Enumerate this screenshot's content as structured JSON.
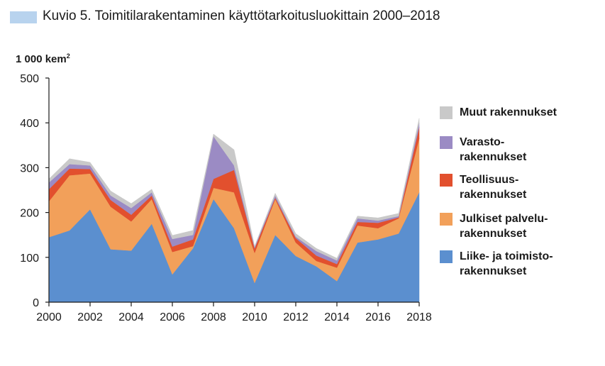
{
  "title": "Kuvio 5. Toimitilarakentaminen käyttötarkoitusluokittain 2000–2018",
  "unit_label": "1 000 kem",
  "unit_sup": "2",
  "colors": {
    "title_swatch": "#b8d3ee",
    "liike": "#5b8fcf",
    "julkiset": "#f2a05a",
    "teollisuus": "#e2502e",
    "varasto": "#9b8bc4",
    "muut": "#c9c9c9"
  },
  "chart_data": {
    "type": "area",
    "stacked": true,
    "x": [
      2000,
      2001,
      2002,
      2003,
      2004,
      2005,
      2006,
      2007,
      2008,
      2009,
      2010,
      2011,
      2012,
      2013,
      2014,
      2015,
      2016,
      2017,
      2018
    ],
    "ylim": [
      0,
      500
    ],
    "yticks": [
      0,
      100,
      200,
      300,
      400,
      500
    ],
    "xticks": [
      2000,
      2002,
      2004,
      2006,
      2008,
      2010,
      2012,
      2014,
      2016,
      2018
    ],
    "grid": false,
    "legend_position": "right",
    "series": [
      {
        "name": "Liike- ja toimistorakennukset",
        "legend_lines": [
          "Liike- ja toimisto-",
          "rakennukset"
        ],
        "color": "#5b8fcf",
        "values": [
          145,
          160,
          207,
          118,
          115,
          175,
          62,
          120,
          230,
          165,
          43,
          150,
          103,
          80,
          47,
          133,
          140,
          153,
          245
        ]
      },
      {
        "name": "Julkiset palvelurakennukset",
        "legend_lines": [
          "Julkiset palvelu-",
          "rakennukset"
        ],
        "color": "#f2a05a",
        "values": [
          80,
          123,
          80,
          95,
          65,
          55,
          50,
          5,
          25,
          80,
          67,
          80,
          30,
          12,
          30,
          38,
          25,
          34,
          120
        ]
      },
      {
        "name": "Teollisuusrakennukset",
        "legend_lines": [
          "Teollisuus-",
          "rakennukset"
        ],
        "color": "#e2502e",
        "values": [
          27,
          15,
          10,
          15,
          15,
          8,
          12,
          15,
          20,
          50,
          10,
          3,
          10,
          12,
          8,
          8,
          12,
          2,
          25
        ]
      },
      {
        "name": "Varastorakennukset",
        "legend_lines": [
          "Varasto-",
          "rakennukset"
        ],
        "color": "#9b8bc4",
        "values": [
          15,
          10,
          8,
          10,
          15,
          7,
          17,
          10,
          95,
          10,
          3,
          5,
          3,
          10,
          8,
          8,
          5,
          3,
          10
        ]
      },
      {
        "name": "Muut rakennukset",
        "legend_lines": [
          "Muut rakennukset"
        ],
        "color": "#c9c9c9",
        "values": [
          8,
          12,
          7,
          10,
          10,
          7,
          8,
          10,
          5,
          35,
          2,
          5,
          7,
          6,
          5,
          5,
          6,
          6,
          10
        ]
      }
    ]
  }
}
